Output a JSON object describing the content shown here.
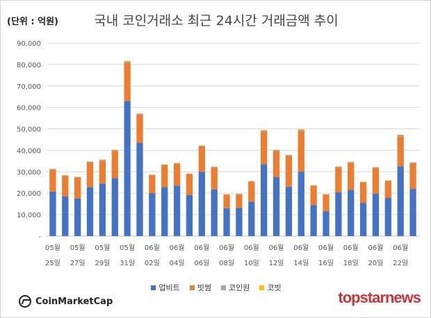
{
  "header": {
    "unit_label": "(단위 : 억원)",
    "title": "국내 코인거래소 최근 24시간 거래금액 추이"
  },
  "footer": {
    "source_logo_text": "CoinMarketCap",
    "brand_logo_text": "topstarnews"
  },
  "chart_data": {
    "type": "bar",
    "stacked": true,
    "title": "국내 코인거래소 최근 24시간 거래금액 추이",
    "ylabel": "(단위 : 억원)",
    "ylim": [
      0,
      90000
    ],
    "yticks": [
      "-",
      "10,000",
      "20,000",
      "30,000",
      "40,000",
      "50,000",
      "60,000",
      "70,000",
      "80,000",
      "90,000"
    ],
    "tick_labels_top": [
      "05월",
      "05월",
      "05월",
      "05월",
      "06월",
      "06월",
      "06월",
      "06월",
      "06월",
      "06월",
      "06월",
      "06월",
      "06월",
      "06월",
      "06월"
    ],
    "tick_labels_bottom": [
      "25일",
      "27일",
      "29일",
      "31일",
      "02일",
      "04일",
      "06일",
      "08일",
      "10일",
      "12일",
      "14일",
      "16일",
      "18일",
      "20일",
      "22일"
    ],
    "categories": [
      "05월 25일",
      "05월 26일",
      "05월 27일",
      "05월 28일",
      "05월 29일",
      "05월 30일",
      "05월 31일",
      "06월 01일",
      "06월 02일",
      "06월 03일",
      "06월 04일",
      "06월 05일",
      "06월 06일",
      "06월 07일",
      "06월 08일",
      "06월 09일",
      "06월 10일",
      "06월 11일",
      "06월 12일",
      "06월 13일",
      "06월 14일",
      "06월 15일",
      "06월 16일",
      "06월 17일",
      "06월 18일",
      "06월 19일",
      "06월 20일",
      "06월 21일",
      "06월 22일",
      "06월 23일"
    ],
    "series": [
      {
        "name": "업비트",
        "color": "#4472C4",
        "values": [
          20800,
          18500,
          17500,
          22800,
          24500,
          27000,
          63000,
          43500,
          20000,
          22800,
          23500,
          19200,
          30000,
          21800,
          13000,
          13200,
          16000,
          33500,
          27500,
          23000,
          30000,
          14500,
          11500,
          20500,
          21500,
          15500,
          19800,
          17800,
          32500,
          22000
        ]
      },
      {
        "name": "빗썸",
        "color": "#ED7D31",
        "values": [
          10200,
          9500,
          9800,
          11500,
          10700,
          12800,
          17900,
          13000,
          8300,
          10300,
          10200,
          9600,
          11800,
          10200,
          6300,
          6200,
          9300,
          15300,
          12300,
          14400,
          19000,
          8900,
          7800,
          11500,
          12600,
          9500,
          11900,
          7800,
          14000,
          11900
        ]
      },
      {
        "name": "코인원",
        "color": "#A5A5A5",
        "values": [
          300,
          300,
          300,
          400,
          400,
          400,
          600,
          500,
          300,
          300,
          300,
          300,
          400,
          300,
          200,
          200,
          300,
          500,
          400,
          400,
          600,
          300,
          200,
          400,
          400,
          300,
          400,
          300,
          600,
          400
        ]
      },
      {
        "name": "코빗",
        "color": "#FFC000",
        "values": [
          100,
          100,
          100,
          100,
          100,
          100,
          200,
          200,
          100,
          100,
          100,
          100,
          100,
          100,
          100,
          100,
          100,
          200,
          100,
          100,
          300,
          100,
          100,
          100,
          100,
          100,
          100,
          100,
          200,
          100
        ]
      }
    ],
    "grid": true,
    "legend_position": "bottom"
  }
}
